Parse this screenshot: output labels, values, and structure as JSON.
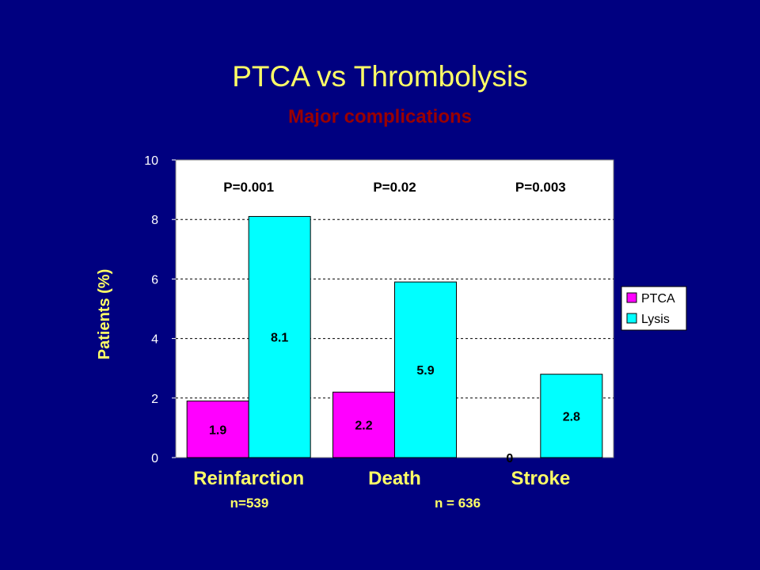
{
  "slide": {
    "title": "PTCA vs Thrombolysis",
    "subtitle": "Major complications",
    "colors": {
      "background": "#000080",
      "title": "#ffff66",
      "subtitle": "#990000",
      "plot_area": "#ffffff"
    }
  },
  "chart_data": {
    "type": "bar",
    "title": "PTCA vs Thrombolysis",
    "subtitle": "Major complications",
    "xlabel": "",
    "ylabel": "Patients (%)",
    "ylim": [
      0,
      10
    ],
    "yticks": [
      "0",
      "2",
      "4",
      "6",
      "8",
      "10"
    ],
    "grid": true,
    "legend_position": "right",
    "categories": [
      "Reinfarction",
      "Death",
      "Stroke"
    ],
    "series": [
      {
        "name": "PTCA",
        "color": "#ff00ff",
        "values": [
          1.9,
          2.2,
          0
        ],
        "labels": [
          "1.9",
          "2.2",
          "0"
        ]
      },
      {
        "name": "Lysis",
        "color": "#00ffff",
        "values": [
          8.1,
          5.9,
          2.8
        ],
        "labels": [
          "8.1",
          "5.9",
          "2.8"
        ]
      }
    ],
    "annotations": {
      "p_values": [
        "P=0.001",
        "P=0.02",
        "P=0.003"
      ],
      "sample_sizes": [
        "n=539",
        "n = 636"
      ]
    }
  }
}
